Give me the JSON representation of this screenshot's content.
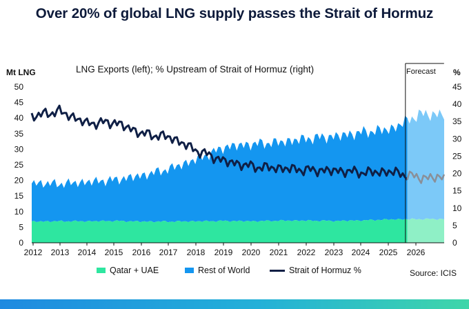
{
  "chart_data": {
    "type": "area",
    "title": "Over 20% of global LNG supply passes the Strait of Hormuz",
    "subtitle": "LNG Exports (left); % Upstream of Strait of Hormuz (right)",
    "ylabel_left": "Mt LNG",
    "ylabel_right": "%",
    "ylim_left": [
      0,
      50
    ],
    "ylim_right": [
      0,
      45
    ],
    "yticks_left": [
      0,
      5,
      10,
      15,
      20,
      25,
      30,
      35,
      40,
      45,
      50
    ],
    "yticks_right": [
      0,
      5,
      10,
      15,
      20,
      25,
      30,
      35,
      40,
      45
    ],
    "x_tick_labels": [
      "2012",
      "2013",
      "2014",
      "2015",
      "2016",
      "2017",
      "2018",
      "2019",
      "2020",
      "2021",
      "2022",
      "2023",
      "2024",
      "2025",
      "2026"
    ],
    "forecast_start": 2025.5,
    "forecast_label": "Forecast",
    "years": [
      2012,
      2013,
      2014,
      2015,
      2016,
      2017,
      2018,
      2019,
      2020,
      2021,
      2022,
      2023,
      2024,
      2025,
      2026
    ],
    "series": [
      {
        "name": "Qatar + UAE",
        "axis": "left",
        "color": "#2ee6a0",
        "forecast_color": "#8ff0c6",
        "values": [
          6.8,
          6.9,
          6.9,
          7.0,
          6.8,
          6.8,
          6.9,
          7.0,
          6.9,
          7.1,
          7.1,
          7.0,
          7.2,
          7.5,
          7.6
        ]
      },
      {
        "name": "Rest of World",
        "axis": "left",
        "color": "#1496f0",
        "forecast_color": "#7cc9f8",
        "values": [
          12.4,
          12.0,
          12.6,
          13.2,
          14.8,
          17.0,
          20.0,
          23.8,
          24.8,
          25.2,
          26.4,
          27.2,
          28.3,
          29.0,
          33.6
        ]
      },
      {
        "name": "Strait of Hormuz %",
        "axis": "right",
        "color": "#0f1f45",
        "values": [
          36.5,
          38.0,
          34.5,
          34.8,
          31.5,
          30.5,
          26.5,
          23.5,
          22.0,
          21.5,
          21.0,
          20.8,
          20.3,
          20.5,
          18.8
        ]
      }
    ],
    "source": "Source: ICIS"
  }
}
